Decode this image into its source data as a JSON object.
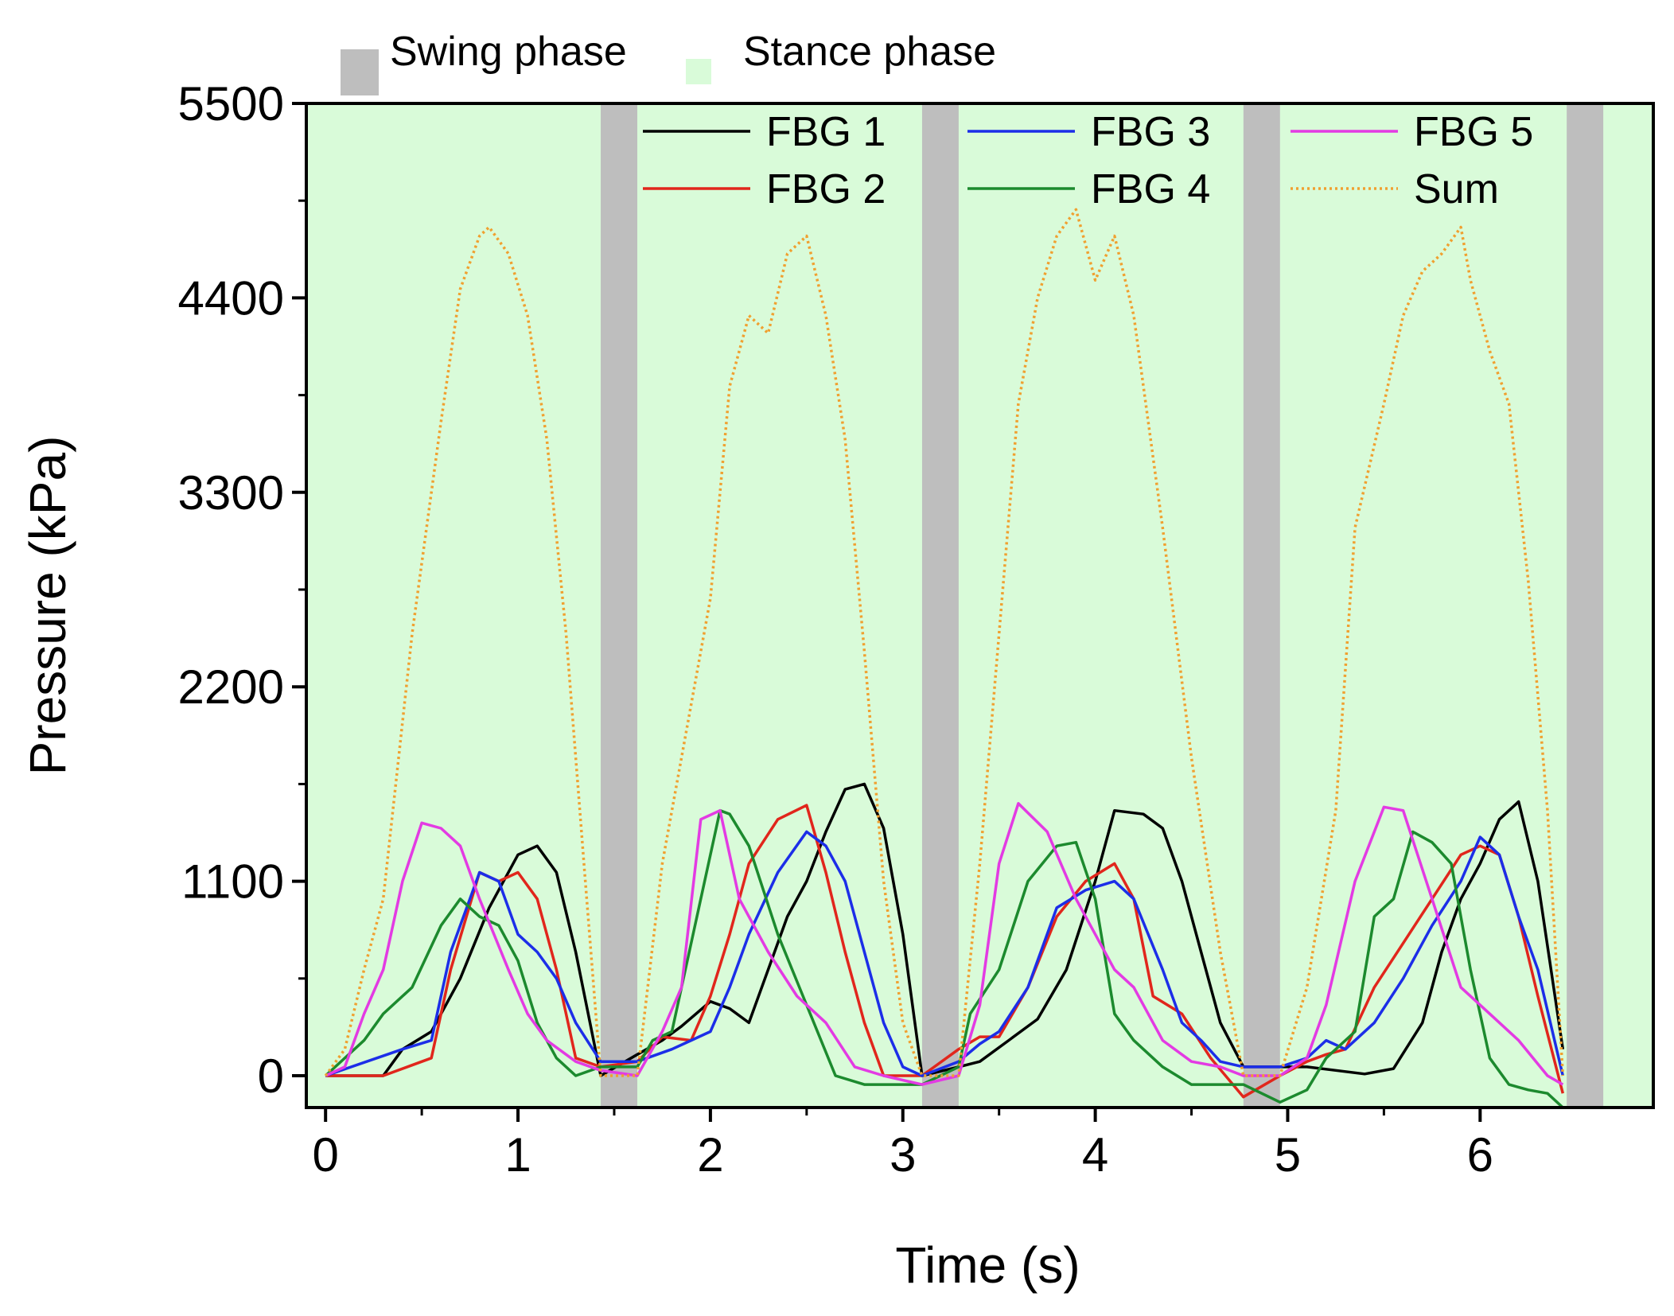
{
  "chart_data": {
    "type": "line",
    "xlabel": "Time (s)",
    "ylabel": "Pressure (kPa)",
    "xlim": [
      -0.1,
      6.9
    ],
    "ylim": [
      -180,
      5500
    ],
    "xticks": [
      0,
      1,
      2,
      3,
      4,
      5,
      6
    ],
    "yticks": [
      0,
      1100,
      2200,
      3300,
      4400,
      5500
    ],
    "phase_legend": [
      {
        "name": "Swing phase",
        "color": "#bebebe"
      },
      {
        "name": "Stance phase",
        "color": "#d9fbd9"
      }
    ],
    "swing_phases": [
      [
        1.43,
        1.62
      ],
      [
        3.1,
        3.29
      ],
      [
        4.77,
        4.96
      ],
      [
        6.45,
        6.64
      ]
    ],
    "series": [
      {
        "name": "FBG 1",
        "color": "#000000",
        "dash": "solid",
        "x": [
          0,
          0.3,
          0.4,
          0.55,
          0.7,
          0.85,
          1.0,
          1.1,
          1.2,
          1.3,
          1.43,
          1.62,
          1.75,
          1.85,
          2.0,
          2.1,
          2.2,
          2.3,
          2.4,
          2.5,
          2.6,
          2.7,
          2.8,
          2.9,
          3.0,
          3.1,
          3.29,
          3.4,
          3.55,
          3.7,
          3.85,
          4.0,
          4.1,
          4.25,
          4.35,
          4.45,
          4.55,
          4.65,
          4.77,
          4.96,
          5.1,
          5.25,
          5.4,
          5.55,
          5.7,
          5.8,
          5.9,
          6.0,
          6.1,
          6.2,
          6.3,
          6.43
        ],
        "values": [
          0,
          0,
          150,
          250,
          550,
          950,
          1250,
          1300,
          1150,
          700,
          0,
          120,
          200,
          280,
          420,
          380,
          300,
          600,
          900,
          1100,
          1380,
          1620,
          1650,
          1400,
          800,
          0,
          50,
          80,
          200,
          320,
          600,
          1100,
          1500,
          1480,
          1400,
          1100,
          700,
          300,
          50,
          50,
          50,
          30,
          10,
          40,
          300,
          700,
          1000,
          1200,
          1450,
          1550,
          1100,
          150
        ]
      },
      {
        "name": "FBG 2",
        "color": "#e1261c",
        "dash": "solid",
        "x": [
          0,
          0.3,
          0.45,
          0.55,
          0.65,
          0.8,
          0.9,
          1.0,
          1.1,
          1.2,
          1.3,
          1.43,
          1.62,
          1.75,
          1.9,
          2.0,
          2.1,
          2.2,
          2.35,
          2.5,
          2.6,
          2.7,
          2.8,
          2.9,
          3.1,
          3.29,
          3.4,
          3.5,
          3.65,
          3.8,
          3.95,
          4.1,
          4.2,
          4.3,
          4.45,
          4.6,
          4.77,
          4.96,
          5.1,
          5.2,
          5.3,
          5.45,
          5.6,
          5.75,
          5.9,
          6.0,
          6.1,
          6.2,
          6.3,
          6.43
        ],
        "values": [
          0,
          0,
          60,
          100,
          600,
          1150,
          1100,
          1150,
          1000,
          600,
          100,
          50,
          80,
          220,
          200,
          450,
          800,
          1200,
          1450,
          1530,
          1150,
          700,
          300,
          0,
          0,
          150,
          220,
          220,
          500,
          900,
          1100,
          1200,
          1000,
          450,
          350,
          100,
          -120,
          0,
          80,
          120,
          150,
          500,
          750,
          1000,
          1250,
          1300,
          1250,
          900,
          450,
          -100
        ]
      },
      {
        "name": "FBG 3",
        "color": "#1c2ee8",
        "dash": "solid",
        "x": [
          0,
          0.4,
          0.55,
          0.65,
          0.8,
          0.9,
          1.0,
          1.1,
          1.2,
          1.3,
          1.43,
          1.62,
          1.8,
          1.9,
          2.0,
          2.1,
          2.2,
          2.35,
          2.5,
          2.6,
          2.7,
          2.8,
          2.9,
          3.0,
          3.1,
          3.29,
          3.4,
          3.5,
          3.65,
          3.8,
          3.95,
          4.1,
          4.2,
          4.35,
          4.45,
          4.55,
          4.65,
          4.77,
          4.96,
          5.1,
          5.2,
          5.3,
          5.45,
          5.6,
          5.75,
          5.9,
          6.0,
          6.1,
          6.2,
          6.3,
          6.43
        ],
        "values": [
          0,
          150,
          200,
          700,
          1150,
          1100,
          800,
          700,
          550,
          300,
          80,
          80,
          150,
          200,
          250,
          500,
          800,
          1150,
          1380,
          1300,
          1100,
          700,
          300,
          50,
          0,
          80,
          180,
          250,
          500,
          950,
          1050,
          1100,
          1000,
          600,
          300,
          200,
          80,
          50,
          50,
          100,
          200,
          150,
          300,
          550,
          850,
          1100,
          1350,
          1250,
          900,
          600,
          0
        ]
      },
      {
        "name": "FBG 4",
        "color": "#1c8a2e",
        "dash": "solid",
        "x": [
          0,
          0.2,
          0.3,
          0.45,
          0.6,
          0.7,
          0.8,
          0.9,
          1.0,
          1.1,
          1.2,
          1.3,
          1.43,
          1.62,
          1.7,
          1.8,
          1.95,
          2.05,
          2.1,
          2.2,
          2.35,
          2.5,
          2.65,
          2.8,
          2.95,
          3.1,
          3.29,
          3.35,
          3.5,
          3.65,
          3.8,
          3.9,
          4.0,
          4.1,
          4.2,
          4.35,
          4.5,
          4.65,
          4.77,
          4.96,
          5.1,
          5.2,
          5.35,
          5.45,
          5.55,
          5.65,
          5.75,
          5.85,
          5.95,
          6.05,
          6.15,
          6.25,
          6.35,
          6.43
        ],
        "values": [
          0,
          200,
          350,
          500,
          850,
          1000,
          900,
          850,
          650,
          300,
          100,
          0,
          50,
          50,
          200,
          250,
          1000,
          1500,
          1480,
          1300,
          800,
          400,
          0,
          -50,
          -50,
          -50,
          50,
          350,
          600,
          1100,
          1300,
          1320,
          1000,
          350,
          200,
          50,
          -50,
          -50,
          -50,
          -150,
          -80,
          100,
          250,
          900,
          1000,
          1380,
          1320,
          1200,
          600,
          100,
          -50,
          -80,
          -100,
          -180
        ]
      },
      {
        "name": "FBG 5",
        "color": "#e33be3",
        "dash": "solid",
        "x": [
          0,
          0.1,
          0.2,
          0.3,
          0.4,
          0.5,
          0.6,
          0.7,
          0.8,
          0.95,
          1.05,
          1.15,
          1.3,
          1.43,
          1.62,
          1.75,
          1.85,
          1.95,
          2.05,
          2.15,
          2.3,
          2.45,
          2.6,
          2.75,
          2.9,
          3.1,
          3.29,
          3.4,
          3.5,
          3.6,
          3.75,
          3.9,
          4.0,
          4.1,
          4.2,
          4.35,
          4.5,
          4.65,
          4.77,
          4.96,
          5.1,
          5.2,
          5.35,
          5.5,
          5.6,
          5.75,
          5.9,
          6.05,
          6.2,
          6.35,
          6.43
        ],
        "values": [
          0,
          50,
          350,
          600,
          1100,
          1430,
          1400,
          1300,
          1000,
          600,
          350,
          200,
          80,
          30,
          0,
          250,
          500,
          1450,
          1500,
          1000,
          700,
          450,
          300,
          50,
          0,
          -50,
          0,
          400,
          1200,
          1540,
          1380,
          1000,
          800,
          600,
          500,
          200,
          80,
          50,
          0,
          0,
          100,
          400,
          1100,
          1520,
          1500,
          1000,
          500,
          350,
          200,
          0,
          -50
        ]
      },
      {
        "name": "Sum",
        "color": "#f0a030",
        "dash": "dotted",
        "x": [
          0,
          0.1,
          0.2,
          0.3,
          0.45,
          0.6,
          0.7,
          0.8,
          0.85,
          0.95,
          1.05,
          1.15,
          1.25,
          1.35,
          1.43,
          1.62,
          1.75,
          1.9,
          2.0,
          2.1,
          2.2,
          2.3,
          2.4,
          2.5,
          2.6,
          2.7,
          2.8,
          2.9,
          3.0,
          3.1,
          3.29,
          3.4,
          3.5,
          3.6,
          3.7,
          3.8,
          3.9,
          4.0,
          4.1,
          4.2,
          4.35,
          4.5,
          4.65,
          4.77,
          4.96,
          5.1,
          5.25,
          5.35,
          5.5,
          5.6,
          5.7,
          5.8,
          5.9,
          5.95,
          6.05,
          6.15,
          6.25,
          6.35,
          6.43
        ],
        "values": [
          0,
          150,
          600,
          1000,
          2500,
          3700,
          4450,
          4750,
          4800,
          4650,
          4300,
          3600,
          2500,
          1100,
          0,
          0,
          1200,
          2100,
          2700,
          3900,
          4300,
          4200,
          4650,
          4750,
          4300,
          3600,
          2400,
          1100,
          300,
          0,
          0,
          1200,
          2500,
          3800,
          4400,
          4750,
          4900,
          4500,
          4750,
          4300,
          3100,
          1800,
          700,
          0,
          0,
          500,
          1500,
          3100,
          3800,
          4300,
          4550,
          4650,
          4800,
          4500,
          4100,
          3800,
          2800,
          1500,
          0
        ]
      }
    ]
  }
}
